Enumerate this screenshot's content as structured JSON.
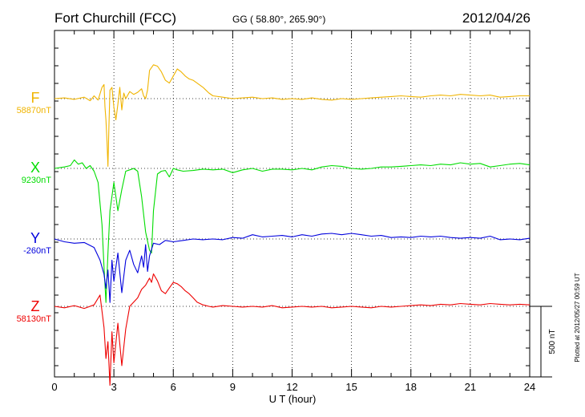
{
  "header": {
    "station": "Fort Churchill (FCC)",
    "coords": "GG ( 58.80°, 265.90°)",
    "date": "2012/04/26"
  },
  "footer": {
    "plotted": "Plotted at 2012/05/27 00:59 UT"
  },
  "chart_data": {
    "type": "line",
    "xlabel": "U T (hour)",
    "xlim": [
      0,
      24
    ],
    "xticks": [
      0,
      3,
      6,
      9,
      12,
      15,
      18,
      21,
      24
    ],
    "grid": true,
    "scale_bar": {
      "label": "500 nT",
      "value_nT": 500
    },
    "series": [
      {
        "name": "F",
        "baseline_label": "58870nT",
        "color": "#f0b400",
        "x": [
          0,
          0.5,
          1,
          1.5,
          1.8,
          2,
          2.2,
          2.4,
          2.5,
          2.55,
          2.6,
          2.65,
          2.7,
          2.75,
          2.8,
          2.9,
          3,
          3.1,
          3.2,
          3.3,
          3.4,
          3.5,
          3.6,
          3.8,
          4,
          4.2,
          4.4,
          4.5,
          4.6,
          4.7,
          4.8,
          5,
          5.2,
          5.4,
          5.6,
          5.8,
          6,
          6.2,
          6.4,
          6.6,
          6.8,
          7,
          7.2,
          7.5,
          7.8,
          8,
          8.5,
          9,
          9.5,
          10,
          10.5,
          11,
          11.5,
          12,
          12.5,
          13,
          13.5,
          14,
          14.5,
          15,
          15.5,
          16,
          16.5,
          17,
          17.5,
          18,
          18.5,
          19,
          19.5,
          20,
          20.5,
          21,
          21.5,
          22,
          22.5,
          23,
          23.5,
          24
        ],
        "y": [
          0,
          5,
          -5,
          10,
          -15,
          20,
          -10,
          80,
          100,
          -60,
          -150,
          -300,
          -480,
          -200,
          60,
          80,
          -60,
          -150,
          -40,
          80,
          -80,
          40,
          0,
          50,
          30,
          45,
          70,
          20,
          0,
          60,
          200,
          240,
          230,
          190,
          130,
          110,
          160,
          210,
          190,
          160,
          140,
          130,
          110,
          80,
          40,
          20,
          10,
          0,
          5,
          10,
          0,
          5,
          -5,
          0,
          -5,
          5,
          -5,
          -10,
          0,
          -5,
          0,
          5,
          10,
          15,
          20,
          15,
          10,
          20,
          25,
          20,
          30,
          25,
          20,
          25,
          10,
          15,
          20,
          20
        ]
      },
      {
        "name": "X",
        "baseline_label": "9230nT",
        "color": "#00dd00",
        "x": [
          0,
          0.5,
          0.8,
          1,
          1.2,
          1.4,
          1.6,
          1.8,
          2,
          2.2,
          2.4,
          2.5,
          2.6,
          2.7,
          2.8,
          3,
          3.2,
          3.4,
          3.6,
          3.8,
          4,
          4.2,
          4.4,
          4.6,
          4.8,
          4.9,
          5,
          5.2,
          5.4,
          5.6,
          5.8,
          6,
          6.2,
          6.5,
          7,
          7.5,
          8,
          8.5,
          9,
          9.5,
          10,
          10.5,
          11,
          11.5,
          12,
          12.5,
          13,
          13.5,
          14,
          14.5,
          15,
          15.5,
          16,
          16.5,
          17,
          17.5,
          18,
          18.5,
          19,
          19.5,
          20,
          20.5,
          21,
          21.5,
          22,
          22.5,
          23,
          23.5,
          24
        ],
        "y": [
          0,
          10,
          20,
          60,
          30,
          40,
          0,
          20,
          -20,
          -100,
          -400,
          -700,
          -950,
          -600,
          -300,
          -100,
          -300,
          -150,
          -20,
          -10,
          0,
          -20,
          -200,
          -450,
          -580,
          -600,
          -300,
          -40,
          -20,
          -15,
          -60,
          0,
          -10,
          -20,
          -15,
          -5,
          -10,
          -5,
          -30,
          -10,
          0,
          -20,
          -5,
          -5,
          -10,
          0,
          -10,
          10,
          20,
          15,
          0,
          -5,
          0,
          10,
          10,
          15,
          20,
          25,
          20,
          30,
          25,
          40,
          30,
          35,
          10,
          20,
          30,
          35,
          25
        ]
      },
      {
        "name": "Y",
        "baseline_label": "-260nT",
        "color": "#0000dd",
        "x": [
          0,
          0.5,
          1,
          1.5,
          2,
          2.3,
          2.5,
          2.6,
          2.7,
          2.8,
          2.9,
          3,
          3.2,
          3.4,
          3.6,
          3.8,
          4,
          4.2,
          4.4,
          4.5,
          4.6,
          4.7,
          4.8,
          5,
          5.3,
          5.6,
          6,
          6.5,
          7,
          7.5,
          8,
          8.5,
          9,
          9.5,
          10,
          10.5,
          11,
          11.5,
          12,
          12.5,
          13,
          13.5,
          14,
          14.5,
          15,
          15.5,
          16,
          16.5,
          17,
          17.5,
          18,
          18.5,
          19,
          19.5,
          20,
          20.5,
          21,
          21.5,
          22,
          22.5,
          23,
          23.5,
          24
        ],
        "y": [
          0,
          -20,
          -30,
          -25,
          -60,
          -150,
          -250,
          -350,
          -220,
          -450,
          -150,
          -300,
          -100,
          -380,
          -150,
          -80,
          -180,
          -240,
          -120,
          -200,
          -40,
          -230,
          -120,
          -30,
          -40,
          -10,
          -20,
          -10,
          0,
          -5,
          0,
          -5,
          10,
          5,
          30,
          15,
          20,
          25,
          15,
          30,
          20,
          35,
          40,
          30,
          40,
          30,
          20,
          25,
          10,
          15,
          10,
          20,
          15,
          20,
          10,
          5,
          10,
          5,
          20,
          -5,
          0,
          -5,
          5
        ]
      },
      {
        "name": "Z",
        "baseline_label": "58130nT",
        "color": "#ee0000",
        "x": [
          0,
          0.5,
          1,
          1.5,
          2,
          2.3,
          2.5,
          2.6,
          2.7,
          2.8,
          2.9,
          3,
          3.2,
          3.4,
          3.6,
          3.8,
          4,
          4.2,
          4.4,
          4.6,
          4.8,
          4.9,
          5,
          5.2,
          5.4,
          5.6,
          5.8,
          6,
          6.2,
          6.4,
          6.6,
          6.8,
          7,
          7.2,
          7.5,
          7.8,
          8,
          8.5,
          9,
          9.5,
          10,
          10.5,
          11,
          11.5,
          12,
          12.5,
          13,
          13.5,
          14,
          14.5,
          15,
          15.5,
          16,
          16.5,
          17,
          17.5,
          18,
          18.5,
          19,
          19.5,
          20,
          20.5,
          21,
          21.5,
          22,
          22.5,
          23,
          23.5,
          24
        ],
        "y": [
          0,
          -10,
          5,
          -15,
          10,
          80,
          -150,
          -370,
          -250,
          -560,
          -180,
          -400,
          -120,
          -420,
          -160,
          0,
          30,
          60,
          120,
          150,
          200,
          170,
          230,
          180,
          110,
          90,
          130,
          170,
          160,
          140,
          110,
          90,
          60,
          30,
          10,
          0,
          -5,
          5,
          0,
          -5,
          0,
          -5,
          5,
          -10,
          -5,
          0,
          -5,
          0,
          -10,
          -5,
          0,
          -5,
          -10,
          0,
          -5,
          0,
          5,
          10,
          5,
          15,
          10,
          20,
          15,
          10,
          20,
          15,
          10,
          15,
          10
        ]
      }
    ]
  }
}
